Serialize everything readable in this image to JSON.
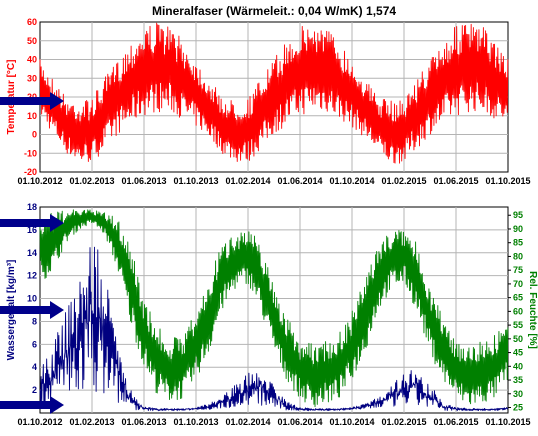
{
  "title": "Mineralfaser (Wärmeleit.: 0,04 W/mK) 1,574",
  "x_tick_labels": [
    "01.10.2012",
    "01.02.2013",
    "01.06.2013",
    "01.10.2013",
    "01.02.2014",
    "01.06.2014",
    "01.10.2014",
    "01.02.2015",
    "01.06.2015",
    "01.10.2015"
  ],
  "colors": {
    "temperature": "#ff0000",
    "water_content": "#000080",
    "humidity": "#008000",
    "arrow": "#00008b",
    "grid": "#b4b4b4"
  },
  "chart_data": [
    {
      "type": "line",
      "x_range": [
        "2012-10-01",
        "2015-10-01"
      ],
      "ylabel": "Temperatur [°C]",
      "ylim": [
        -20,
        60
      ],
      "y_ticks": [
        -20,
        -10,
        0,
        10,
        20,
        30,
        40,
        50,
        60
      ],
      "grid": true,
      "series": [
        {
          "dates": [
            "2012-10-01",
            "2012-11-01",
            "2012-12-01",
            "2013-01-01",
            "2013-02-01",
            "2013-03-01",
            "2013-04-01",
            "2013-05-01",
            "2013-06-01",
            "2013-07-01",
            "2013-08-01",
            "2013-09-01",
            "2013-10-01",
            "2013-11-01",
            "2013-12-01",
            "2014-01-01",
            "2014-02-01",
            "2014-03-01",
            "2014-04-01",
            "2014-05-01",
            "2014-06-01",
            "2014-07-01",
            "2014-08-01",
            "2014-09-01",
            "2014-10-01",
            "2014-11-01",
            "2014-12-01",
            "2015-01-01",
            "2015-02-01",
            "2015-03-01",
            "2015-04-01",
            "2015-05-01",
            "2015-06-01",
            "2015-07-01",
            "2015-08-01",
            "2015-09-01",
            "2015-10-01"
          ],
          "min": [
            10,
            0,
            -10,
            -16,
            -15,
            -8,
            0,
            5,
            10,
            12,
            12,
            8,
            4,
            -2,
            -10,
            -15,
            -15,
            -8,
            0,
            5,
            10,
            12,
            12,
            8,
            4,
            -2,
            -10,
            -16,
            -15,
            -8,
            0,
            5,
            10,
            12,
            12,
            8,
            5
          ],
          "max": [
            40,
            30,
            20,
            18,
            20,
            30,
            40,
            50,
            58,
            60,
            58,
            50,
            40,
            30,
            20,
            18,
            20,
            30,
            40,
            50,
            58,
            60,
            58,
            50,
            40,
            30,
            20,
            18,
            20,
            30,
            40,
            50,
            58,
            60,
            58,
            50,
            40
          ]
        }
      ]
    },
    {
      "type": "line",
      "x_range": [
        "2012-10-01",
        "2015-10-01"
      ],
      "ylabel": "Wassergehalt [kg/m³]",
      "ylim": [
        0,
        18
      ],
      "y_ticks": [
        2,
        4,
        6,
        8,
        10,
        12,
        14,
        16,
        18
      ],
      "y2label": "Rel. Feuchte [%]",
      "y2lim": [
        23,
        98
      ],
      "y2_ticks": [
        25,
        30,
        35,
        40,
        45,
        50,
        55,
        60,
        65,
        70,
        75,
        80,
        85,
        90,
        95
      ],
      "grid": true,
      "series": [
        {
          "axis": "left",
          "dates": [
            "2012-10-01",
            "2012-11-01",
            "2012-12-01",
            "2013-01-01",
            "2013-02-01",
            "2013-03-01",
            "2013-04-01",
            "2013-05-01",
            "2013-06-01",
            "2013-07-01",
            "2013-08-01",
            "2013-09-01",
            "2013-10-01",
            "2013-11-01",
            "2013-12-01",
            "2014-01-01",
            "2014-02-01",
            "2014-03-01",
            "2014-04-01",
            "2014-05-01",
            "2014-06-01",
            "2014-07-01",
            "2014-08-01",
            "2014-09-01",
            "2014-10-01",
            "2014-11-01",
            "2014-12-01",
            "2015-01-01",
            "2015-02-01",
            "2015-03-01",
            "2015-04-01",
            "2015-05-01",
            "2015-06-01",
            "2015-07-01",
            "2015-08-01",
            "2015-09-01",
            "2015-10-01"
          ],
          "min": [
            0.5,
            0.8,
            1.2,
            1.5,
            2,
            1.5,
            0.8,
            0.3,
            0.2,
            0.2,
            0.2,
            0.2,
            0.3,
            0.3,
            0.4,
            0.5,
            0.6,
            0.6,
            0.4,
            0.2,
            0.2,
            0.2,
            0.2,
            0.2,
            0.3,
            0.3,
            0.4,
            0.5,
            0.6,
            0.6,
            0.4,
            0.2,
            0.2,
            0.2,
            0.2,
            0.2,
            0.3
          ],
          "max": [
            4,
            6,
            9,
            12,
            16,
            12,
            7,
            2,
            0.6,
            0.4,
            0.4,
            0.4,
            0.5,
            0.8,
            1.5,
            2.5,
            3.5,
            4,
            2.5,
            1,
            0.5,
            0.4,
            0.4,
            0.4,
            0.5,
            0.8,
            1.5,
            2.5,
            3.5,
            4,
            2.5,
            1,
            0.5,
            0.4,
            0.4,
            0.4,
            0.5
          ]
        },
        {
          "axis": "right",
          "dates": [
            "2012-10-01",
            "2012-11-01",
            "2012-12-01",
            "2013-01-01",
            "2013-02-01",
            "2013-03-01",
            "2013-04-01",
            "2013-05-01",
            "2013-06-01",
            "2013-07-01",
            "2013-08-01",
            "2013-09-01",
            "2013-10-01",
            "2013-11-01",
            "2013-12-01",
            "2014-01-01",
            "2014-02-01",
            "2014-03-01",
            "2014-04-01",
            "2014-05-01",
            "2014-06-01",
            "2014-07-01",
            "2014-08-01",
            "2014-09-01",
            "2014-10-01",
            "2014-11-01",
            "2014-12-01",
            "2015-01-01",
            "2015-02-01",
            "2015-03-01",
            "2015-04-01",
            "2015-05-01",
            "2015-06-01",
            "2015-07-01",
            "2015-08-01",
            "2015-09-01",
            "2015-10-01"
          ],
          "min": [
            70,
            75,
            85,
            90,
            92,
            88,
            75,
            55,
            40,
            30,
            27,
            28,
            35,
            45,
            60,
            68,
            70,
            60,
            45,
            35,
            28,
            25,
            26,
            28,
            35,
            45,
            60,
            68,
            70,
            60,
            45,
            35,
            28,
            25,
            26,
            28,
            35
          ],
          "max": [
            95,
            96,
            97,
            97,
            97,
            96,
            94,
            85,
            65,
            55,
            50,
            52,
            60,
            72,
            85,
            90,
            90,
            85,
            70,
            58,
            50,
            48,
            50,
            52,
            60,
            72,
            85,
            90,
            90,
            85,
            70,
            58,
            50,
            48,
            50,
            52,
            58
          ]
        }
      ]
    }
  ]
}
